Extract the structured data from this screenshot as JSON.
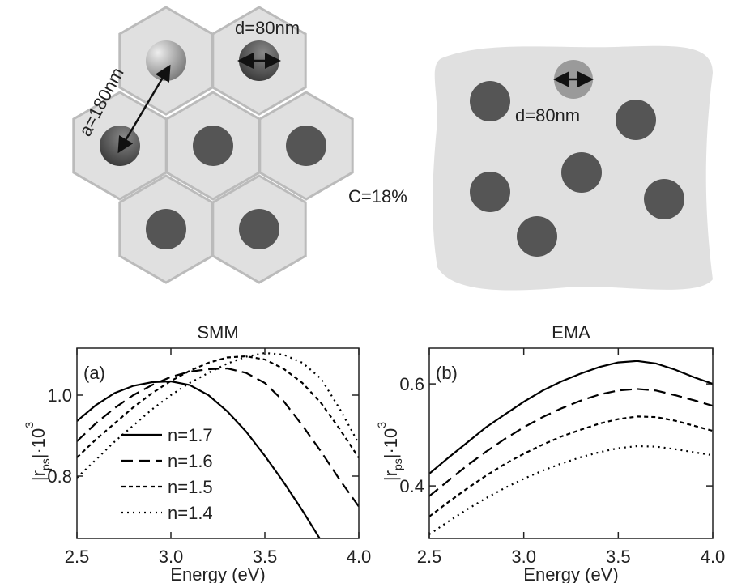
{
  "diagram": {
    "smm": {
      "diameter_label": "d=80nm",
      "spacing_label": "a=180nm"
    },
    "concentration_label": "C=18%",
    "ema": {
      "diameter_label": "d=80nm"
    }
  },
  "chart_data": [
    {
      "type": "line",
      "title": "SMM",
      "panel_label": "(a)",
      "xlabel": "Energy (eV)",
      "ylabel": [
        "|r",
        "ps",
        "|·10",
        "3"
      ],
      "x": [
        2.5,
        2.6,
        2.7,
        2.8,
        2.9,
        3.0,
        3.1,
        3.2,
        3.3,
        3.4,
        3.5,
        3.6,
        3.7,
        3.8,
        3.9,
        4.0
      ],
      "xlim": [
        2.5,
        4.0
      ],
      "xticks": [
        2.5,
        {
          "value": 3,
          "label": "3.0"
        },
        3.5,
        {
          "value": 4,
          "label": "4.0"
        }
      ],
      "ylim": [
        0.646,
        1.116
      ],
      "yticks": [
        0.8,
        {
          "value": 1,
          "label": "1.0"
        }
      ],
      "series": [
        {
          "name": "n=1.7",
          "color": "#000000",
          "dash": "solid",
          "values": [
            0.936,
            0.975,
            1.005,
            1.023,
            1.032,
            1.034,
            1.025,
            1.0,
            0.96,
            0.91,
            0.85,
            0.785,
            0.715,
            0.64,
            null,
            null
          ]
        },
        {
          "name": "n=1.6",
          "color": "#000000",
          "dash": "dashed",
          "values": [
            0.886,
            0.93,
            0.968,
            1.0,
            1.025,
            1.045,
            1.058,
            1.064,
            1.066,
            1.055,
            1.03,
            0.985,
            0.925,
            0.86,
            0.79,
            0.725
          ]
        },
        {
          "name": "n=1.5",
          "color": "#000000",
          "dash": "short-dashed",
          "values": [
            0.846,
            0.89,
            0.93,
            0.97,
            1.005,
            1.035,
            1.06,
            1.08,
            1.093,
            1.096,
            1.088,
            1.065,
            1.03,
            0.98,
            0.915,
            0.845
          ]
        },
        {
          "name": "n=1.4",
          "color": "#000000",
          "dash": "dotted",
          "values": [
            0.796,
            0.84,
            0.885,
            0.925,
            0.965,
            1.0,
            1.03,
            1.055,
            1.078,
            1.095,
            1.104,
            1.1,
            1.08,
            1.04,
            0.965,
            0.88
          ]
        }
      ]
    },
    {
      "type": "line",
      "title": "EMA",
      "panel_label": "(b)",
      "xlabel": "Energy (eV)",
      "ylabel": [
        "|r",
        "ps",
        "|·10",
        "3"
      ],
      "x": [
        2.5,
        2.6,
        2.7,
        2.8,
        2.9,
        3.0,
        3.1,
        3.2,
        3.3,
        3.4,
        3.5,
        3.6,
        3.7,
        3.8,
        3.9,
        4.0
      ],
      "xlim": [
        2.5,
        4.0
      ],
      "xticks": [
        2.5,
        {
          "value": 3,
          "label": "3.0"
        },
        3.5,
        {
          "value": 4,
          "label": "4.0"
        }
      ],
      "ylim": [
        0.297,
        0.67
      ],
      "yticks": [
        0.4,
        0.6
      ],
      "series": [
        {
          "color": "#000000",
          "dash": "solid",
          "values": [
            0.424,
            0.455,
            0.485,
            0.515,
            0.54,
            0.565,
            0.587,
            0.605,
            0.62,
            0.633,
            0.642,
            0.645,
            0.64,
            0.628,
            0.613,
            0.6
          ]
        },
        {
          "color": "#000000",
          "dash": "dashed",
          "values": [
            0.38,
            0.41,
            0.44,
            0.467,
            0.492,
            0.515,
            0.535,
            0.552,
            0.567,
            0.579,
            0.587,
            0.59,
            0.587,
            0.578,
            0.568,
            0.557
          ]
        },
        {
          "color": "#000000",
          "dash": "short-dashed",
          "values": [
            0.34,
            0.368,
            0.395,
            0.42,
            0.443,
            0.463,
            0.481,
            0.497,
            0.51,
            0.522,
            0.531,
            0.536,
            0.535,
            0.528,
            0.518,
            0.508
          ]
        },
        {
          "color": "#000000",
          "dash": "dotted",
          "values": [
            0.305,
            0.33,
            0.354,
            0.376,
            0.396,
            0.414,
            0.43,
            0.444,
            0.456,
            0.466,
            0.474,
            0.478,
            0.477,
            0.472,
            0.466,
            0.46
          ]
        }
      ]
    }
  ]
}
